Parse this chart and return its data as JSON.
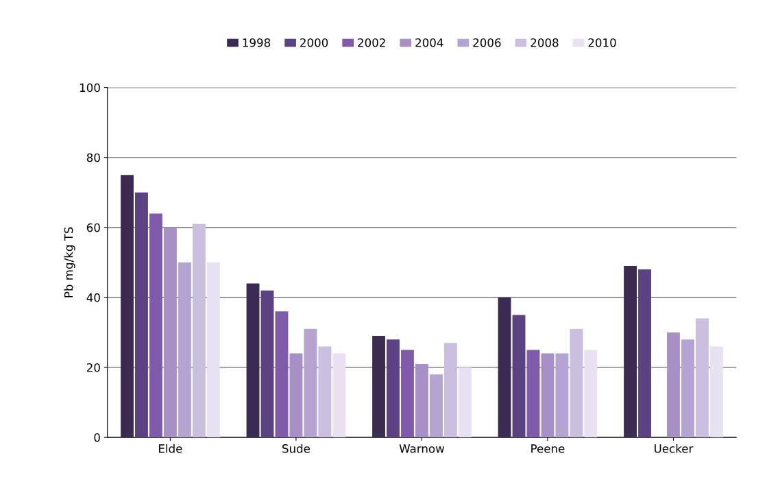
{
  "chart_data": {
    "type": "bar",
    "ylabel": "Pb mg/kg TS",
    "categories": [
      "Elde",
      "Sude",
      "Warnow",
      "Peene",
      "Uecker"
    ],
    "series": [
      {
        "name": "1998",
        "color": "#3b2b52",
        "values": [
          75,
          44,
          29,
          40,
          49
        ]
      },
      {
        "name": "2000",
        "color": "#5b4283",
        "values": [
          70,
          42,
          28,
          35,
          48
        ]
      },
      {
        "name": "2002",
        "color": "#7e5cab",
        "values": [
          64,
          36,
          25,
          25,
          null
        ]
      },
      {
        "name": "2004",
        "color": "#a690c6",
        "values": [
          60,
          24,
          21,
          24,
          30
        ]
      },
      {
        "name": "2006",
        "color": "#b5a3d1",
        "values": [
          50,
          31,
          18,
          24,
          28
        ]
      },
      {
        "name": "2008",
        "color": "#cbbfe0",
        "values": [
          61,
          26,
          27,
          31,
          34
        ]
      },
      {
        "name": "2010",
        "color": "#e7e1f1",
        "values": [
          50,
          24,
          20,
          25,
          26
        ]
      }
    ],
    "ylim": [
      0,
      100
    ],
    "yticks": [
      0,
      20,
      40,
      60,
      80,
      100
    ],
    "grid": "y",
    "legend": "top"
  }
}
